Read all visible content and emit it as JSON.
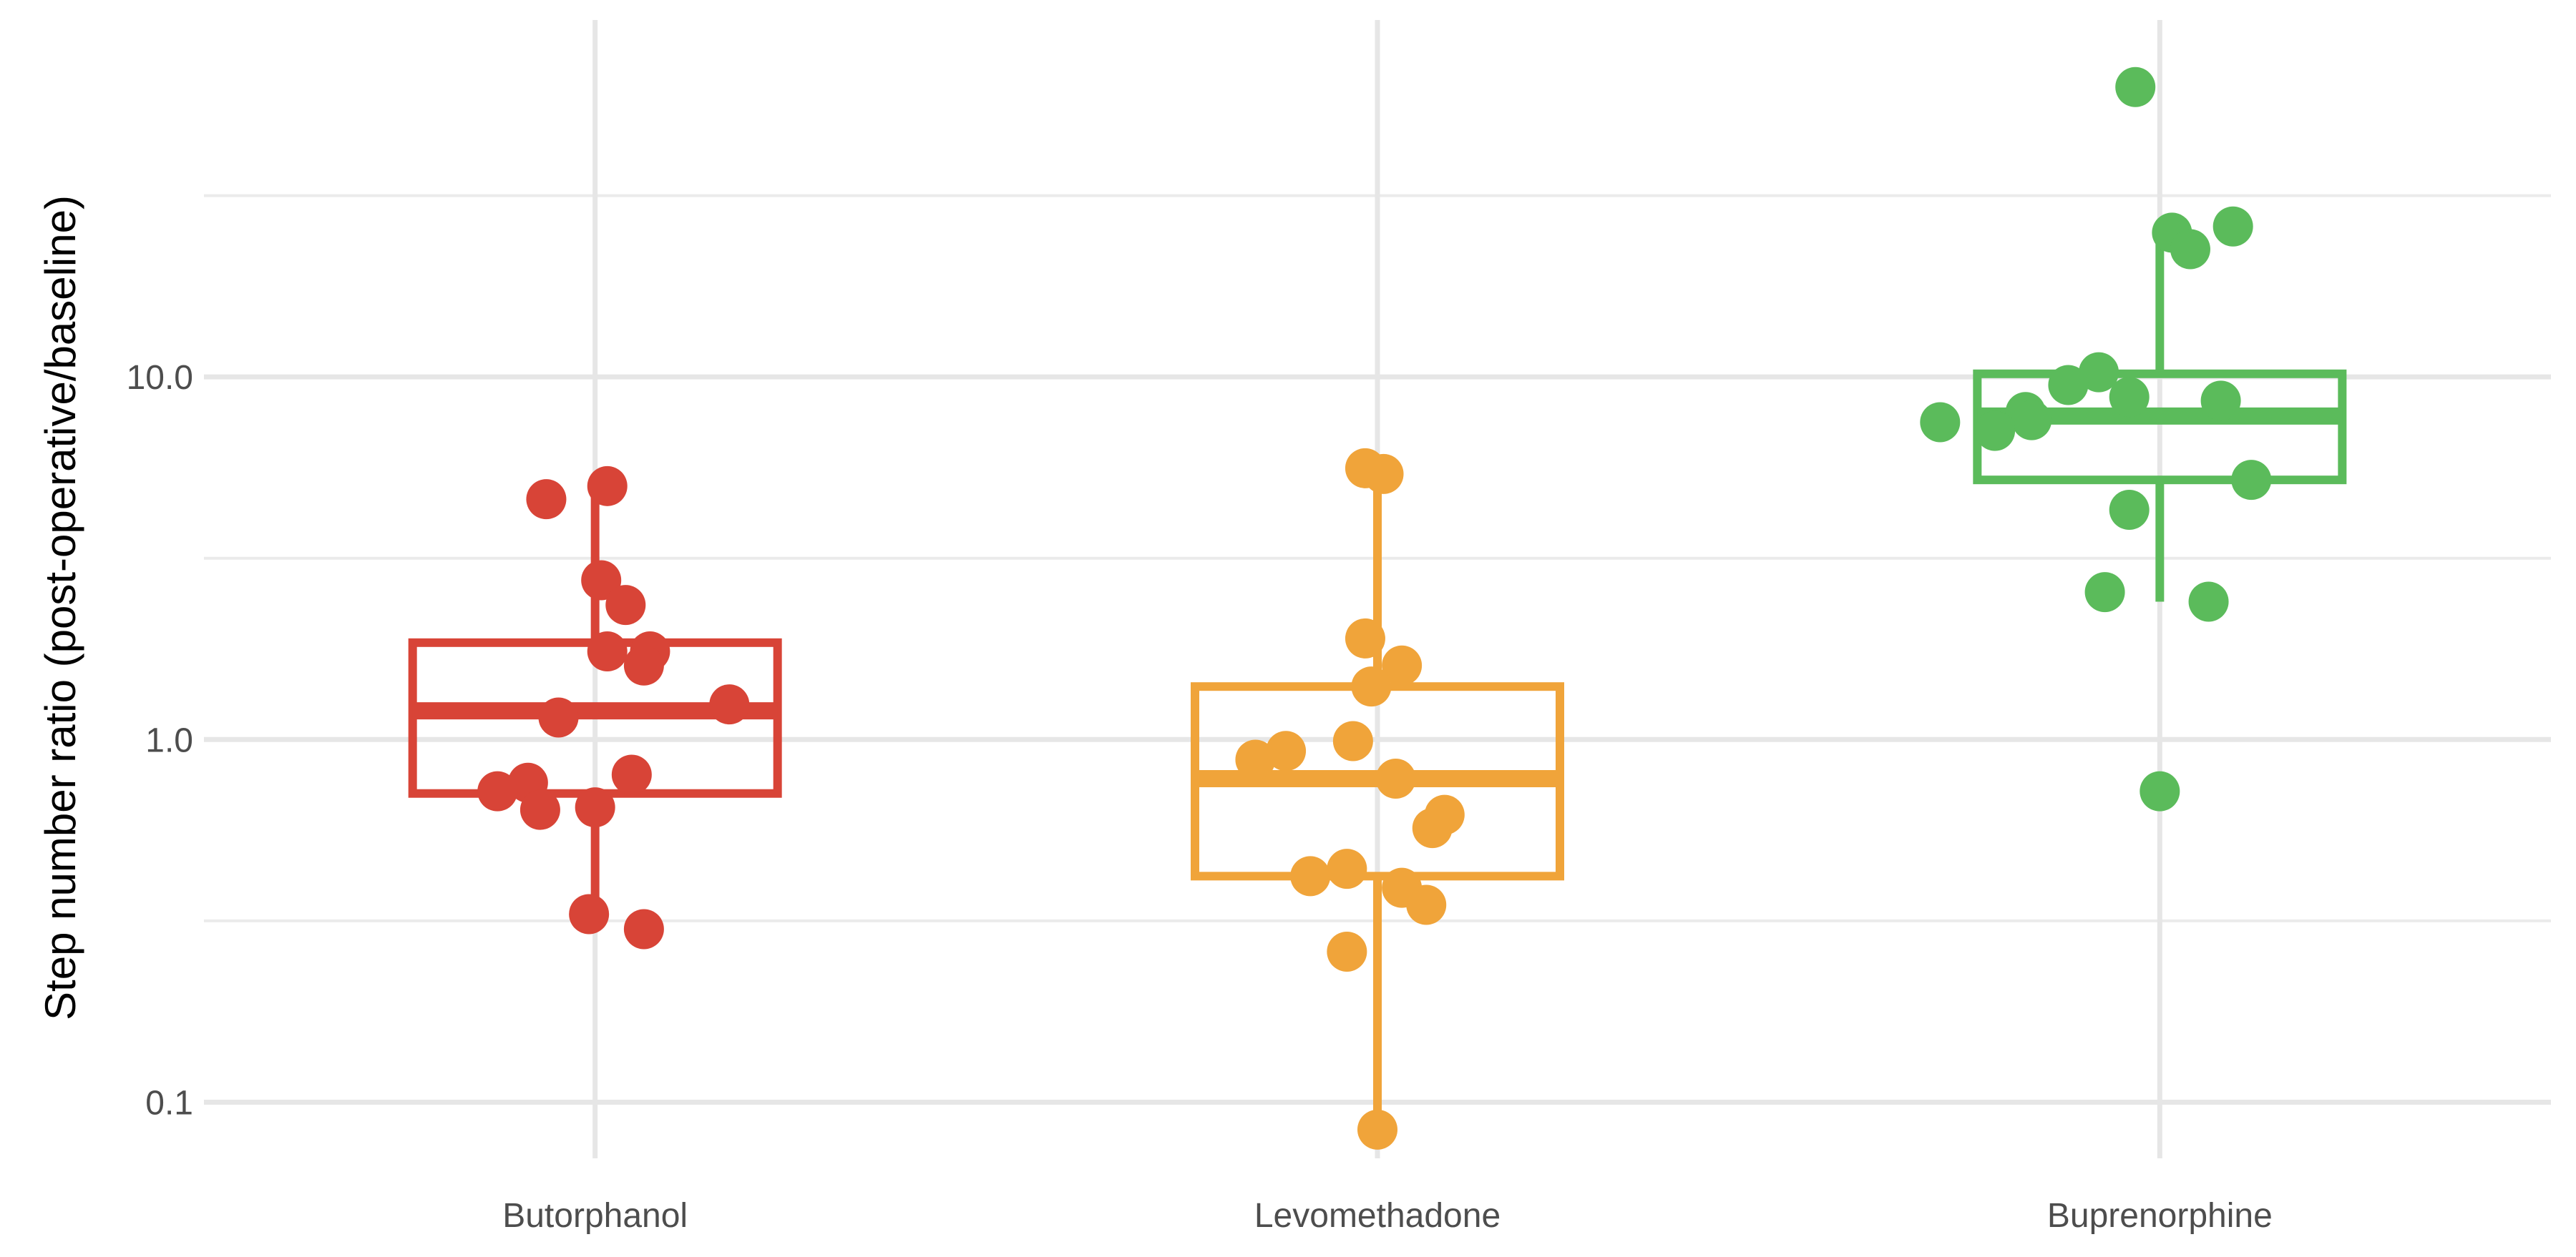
{
  "chart_data": {
    "type": "box",
    "title": "",
    "xlabel": "",
    "ylabel": "Step number ratio (post-operative/baseline)",
    "y_scale": "log10",
    "ylim": [
      0.07,
      100
    ],
    "yticks": [
      0.1,
      1.0,
      10.0
    ],
    "ytick_labels": [
      "0.1",
      "1.0",
      "10.0"
    ],
    "grid": true,
    "legend": "none",
    "categories": [
      "Butorphanol",
      "Levomethadone",
      "Buprenorphine"
    ],
    "colors": [
      "#d84437",
      "#f0a43a",
      "#5bbb5b"
    ],
    "boxes": [
      {
        "name": "Butorphanol",
        "whisker_low": 0.33,
        "q1": 0.71,
        "median": 1.2,
        "q3": 1.85,
        "whisker_high": 5.0
      },
      {
        "name": "Levomethadone",
        "whisker_low": 0.085,
        "q1": 0.42,
        "median": 0.78,
        "q3": 1.4,
        "whisker_high": 5.5
      },
      {
        "name": "Buprenorphine",
        "whisker_low": 2.4,
        "q1": 5.2,
        "median": 7.8,
        "q3": 10.2,
        "whisker_high": 25.0
      }
    ],
    "series": [
      {
        "name": "Butorphanol",
        "points": [
          {
            "x": -0.08,
            "y": 4.6
          },
          {
            "x": 0.02,
            "y": 5.0
          },
          {
            "x": 0.01,
            "y": 2.75
          },
          {
            "x": 0.05,
            "y": 2.35
          },
          {
            "x": 0.02,
            "y": 1.75
          },
          {
            "x": 0.09,
            "y": 1.75
          },
          {
            "x": 0.08,
            "y": 1.6
          },
          {
            "x": 0.22,
            "y": 1.25
          },
          {
            "x": -0.06,
            "y": 1.15
          },
          {
            "x": 0.06,
            "y": 0.8
          },
          {
            "x": -0.11,
            "y": 0.76
          },
          {
            "x": -0.16,
            "y": 0.72
          },
          {
            "x": -0.09,
            "y": 0.64
          },
          {
            "x": 0.0,
            "y": 0.65
          },
          {
            "x": -0.01,
            "y": 0.33
          },
          {
            "x": 0.08,
            "y": 0.3
          }
        ]
      },
      {
        "name": "Levomethadone",
        "points": [
          {
            "x": -0.02,
            "y": 5.6
          },
          {
            "x": 0.01,
            "y": 5.4
          },
          {
            "x": -0.02,
            "y": 1.9
          },
          {
            "x": 0.04,
            "y": 1.6
          },
          {
            "x": -0.01,
            "y": 1.4
          },
          {
            "x": -0.04,
            "y": 0.99
          },
          {
            "x": -0.15,
            "y": 0.93
          },
          {
            "x": -0.2,
            "y": 0.88
          },
          {
            "x": 0.03,
            "y": 0.78
          },
          {
            "x": 0.11,
            "y": 0.62
          },
          {
            "x": 0.09,
            "y": 0.57
          },
          {
            "x": -0.11,
            "y": 0.42
          },
          {
            "x": -0.05,
            "y": 0.44
          },
          {
            "x": 0.04,
            "y": 0.39
          },
          {
            "x": 0.08,
            "y": 0.35
          },
          {
            "x": -0.05,
            "y": 0.26
          },
          {
            "x": 0.0,
            "y": 0.084
          }
        ]
      },
      {
        "name": "Buprenorphine",
        "points": [
          {
            "x": -0.04,
            "y": 63.0
          },
          {
            "x": 0.02,
            "y": 25.0
          },
          {
            "x": 0.12,
            "y": 26.0
          },
          {
            "x": 0.05,
            "y": 22.5
          },
          {
            "x": -0.1,
            "y": 10.3
          },
          {
            "x": -0.15,
            "y": 9.5
          },
          {
            "x": -0.05,
            "y": 8.8
          },
          {
            "x": 0.1,
            "y": 8.6
          },
          {
            "x": -0.22,
            "y": 8.0
          },
          {
            "x": -0.21,
            "y": 7.6
          },
          {
            "x": -0.36,
            "y": 7.5
          },
          {
            "x": -0.27,
            "y": 7.1
          },
          {
            "x": 0.15,
            "y": 5.2
          },
          {
            "x": -0.05,
            "y": 4.3
          },
          {
            "x": -0.09,
            "y": 2.55
          },
          {
            "x": 0.08,
            "y": 2.4
          },
          {
            "x": 0.0,
            "y": 0.72
          }
        ]
      }
    ]
  }
}
